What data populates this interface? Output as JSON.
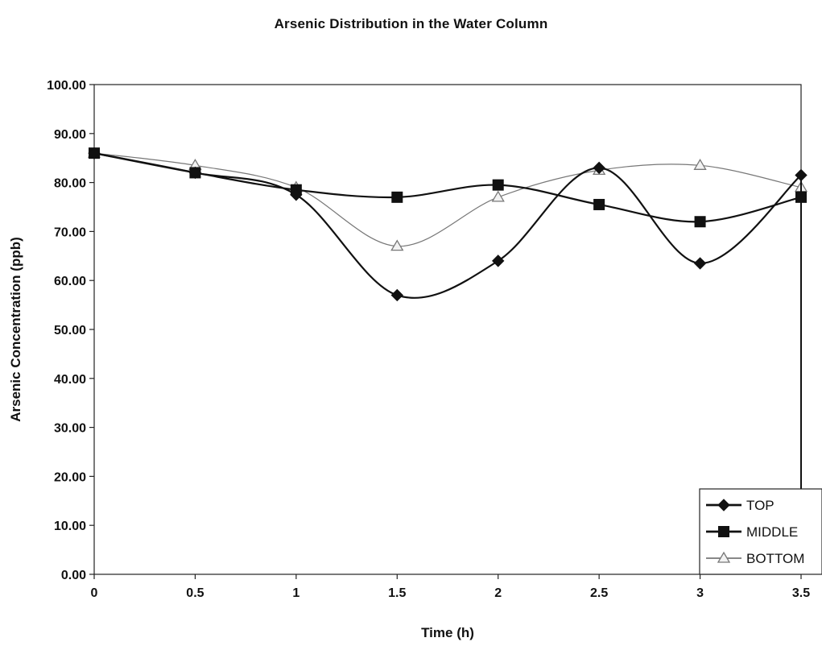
{
  "chart_data": {
    "type": "line",
    "title": "Arsenic Distribution in the Water Column",
    "xlabel": "Time (h)",
    "ylabel": "Arsenic Concentration (ppb)",
    "x": [
      0,
      0.5,
      1,
      1.5,
      2,
      2.5,
      3,
      3.5
    ],
    "x_tick_labels": [
      "0",
      "0.5",
      "1",
      "1.5",
      "2",
      "2.5",
      "3",
      "3.5"
    ],
    "y_tick_labels": [
      "0.00",
      "10.00",
      "20.00",
      "30.00",
      "40.00",
      "50.00",
      "60.00",
      "70.00",
      "80.00",
      "90.00",
      "100.00"
    ],
    "xlim": [
      0,
      3.5
    ],
    "ylim": [
      0,
      100
    ],
    "grid": false,
    "smooth": true,
    "legend_position": "bottom-right",
    "series": [
      {
        "name": "TOP",
        "marker": "diamond",
        "color": "#111111",
        "line_width": 2.2,
        "values": [
          86.0,
          82.0,
          77.5,
          57.0,
          64.0,
          83.0,
          63.5,
          81.5
        ],
        "drop_to_zero_at_end": true
      },
      {
        "name": "MIDDLE",
        "marker": "square",
        "color": "#111111",
        "line_width": 2.2,
        "values": [
          86.0,
          82.0,
          78.5,
          77.0,
          79.5,
          75.5,
          72.0,
          77.0
        ]
      },
      {
        "name": "BOTTOM",
        "marker": "triangle",
        "color": "#777777",
        "line_width": 1.2,
        "values": [
          86.0,
          83.5,
          79.0,
          67.0,
          77.0,
          82.5,
          83.5,
          79.0
        ]
      }
    ]
  }
}
